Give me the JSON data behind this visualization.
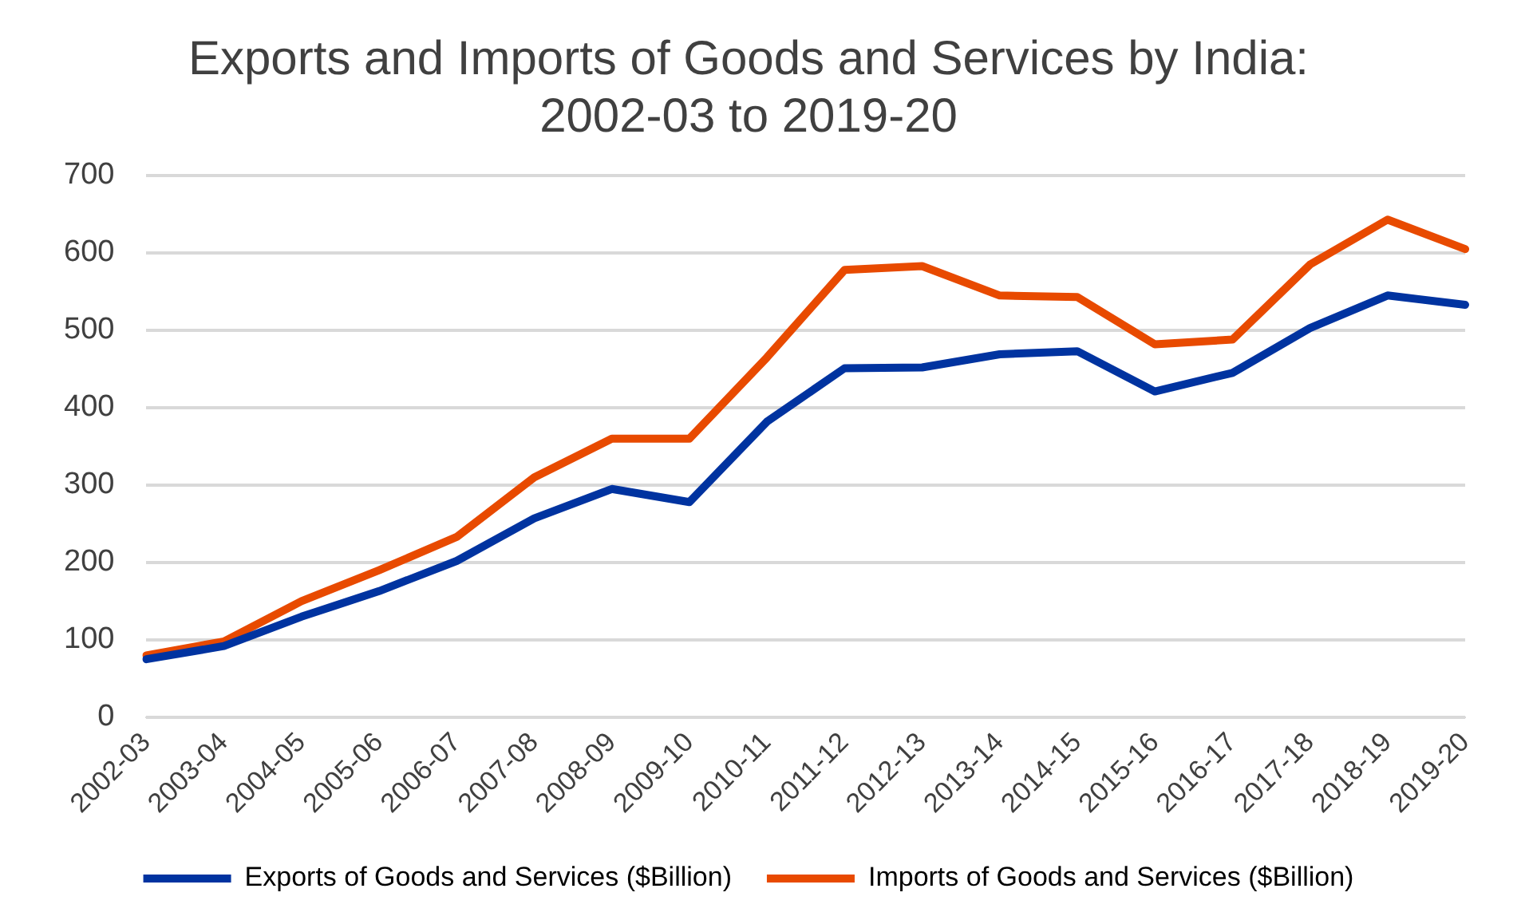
{
  "chart_data": {
    "type": "line",
    "title": "Exports and Imports of Goods and Services by India: 2002-03 to 2019-20",
    "categories": [
      "2002-03",
      "2003-04",
      "2004-05",
      "2005-06",
      "2006-07",
      "2007-08",
      "2008-09",
      "2009-10",
      "2010-11",
      "2011-12",
      "2012-13",
      "2013-14",
      "2014-15",
      "2015-16",
      "2016-17",
      "2017-18",
      "2018-19",
      "2019-20"
    ],
    "series": [
      {
        "name": "Exports of Goods and Services ($Billion)",
        "color": "#0033a0",
        "values": [
          75,
          92,
          130,
          163,
          202,
          257,
          295,
          278,
          382,
          451,
          452,
          469,
          473,
          421,
          445,
          503,
          545,
          533
        ]
      },
      {
        "name": "Imports of Goods and Services ($Billion)",
        "color": "#e84a00",
        "values": [
          80,
          98,
          150,
          190,
          233,
          310,
          360,
          360,
          465,
          578,
          583,
          545,
          543,
          482,
          488,
          585,
          643,
          605
        ]
      }
    ],
    "ylim": [
      0,
      700
    ],
    "yticks": [
      0,
      100,
      200,
      300,
      400,
      500,
      600,
      700
    ],
    "grid": "y",
    "legend": "bottom",
    "marker": "none",
    "line_style": "solid"
  }
}
